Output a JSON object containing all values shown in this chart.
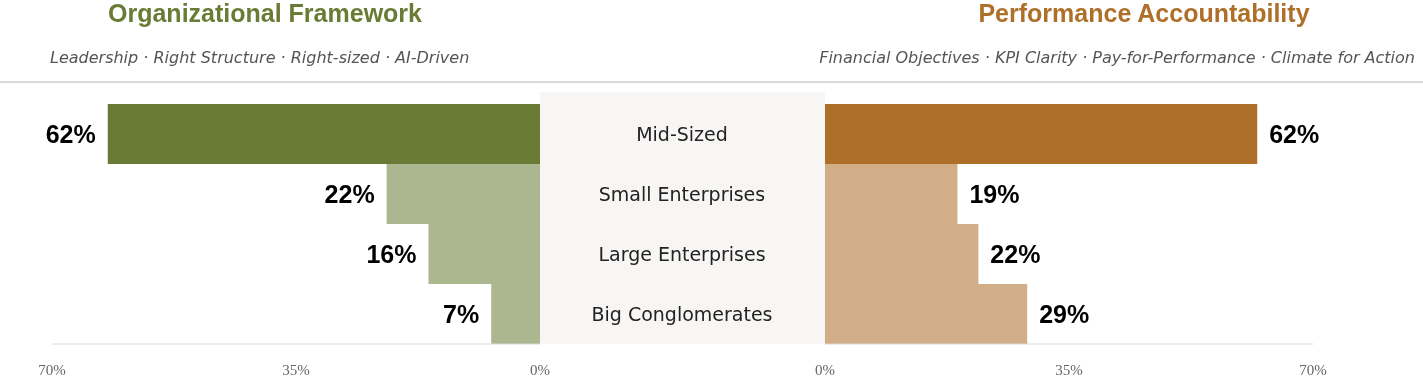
{
  "chart_data": [
    {
      "type": "bar",
      "orientation": "horizontal",
      "title": "Organizational Framework",
      "subtitle": "Leadership · Right Structure · Right-sized · AI-Driven",
      "categories": [
        "Mid-Sized",
        "Small Enterprises",
        "Large Enterprises",
        "Big Conglomerates"
      ],
      "values": [
        62,
        22,
        16,
        7
      ],
      "colors": [
        "#6a7b35",
        "#adb78f",
        "#adb78f",
        "#adb78f"
      ],
      "value_labels": [
        "62%",
        "22%",
        "16%",
        "7%"
      ],
      "xlim": [
        70,
        0
      ],
      "xticks": [
        {
          "value": 70,
          "label": "70%"
        },
        {
          "value": 35,
          "label": "35%"
        },
        {
          "value": 0,
          "label": "0%"
        }
      ]
    },
    {
      "type": "bar",
      "orientation": "horizontal",
      "title": "Performance Accountability",
      "subtitle": "Financial Objectives · KPI Clarity · Pay-for-Performance · Climate for Action",
      "categories": [
        null,
        null,
        null,
        null
      ],
      "values": [
        62,
        19,
        22,
        29
      ],
      "colors": [
        "#ae7029",
        "#d2ae88",
        "#d2ae88",
        "#d2ae88"
      ],
      "value_labels": [
        "62%",
        "19%",
        "22%",
        "29%"
      ],
      "xlim": [
        0,
        70
      ],
      "xticks": [
        {
          "value": 0,
          "label": "0%"
        },
        {
          "value": 35,
          "label": "35%"
        },
        {
          "value": 70,
          "label": "70%"
        }
      ]
    }
  ]
}
